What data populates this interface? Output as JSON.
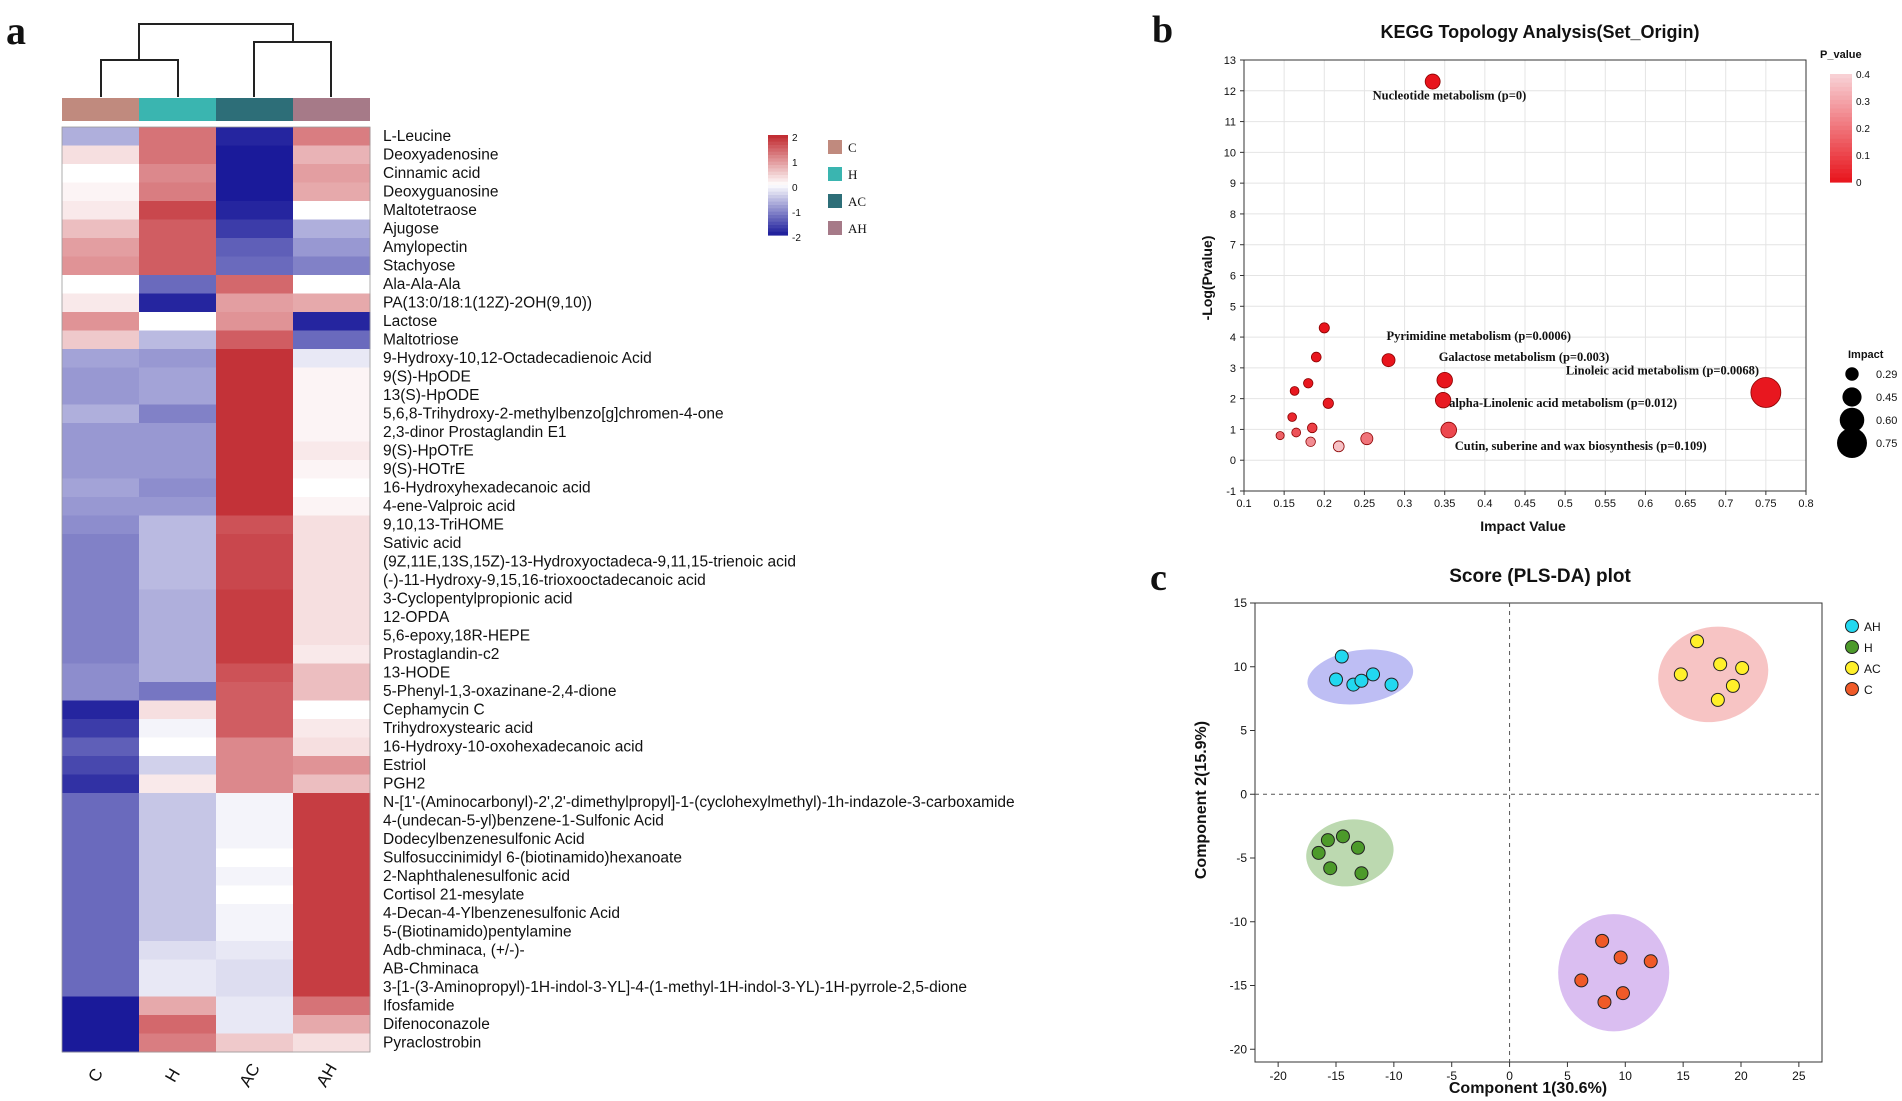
{
  "panels": {
    "a": "a",
    "b": "b",
    "c": "c"
  },
  "colors": {
    "group_C": "#C08A7E",
    "group_H": "#3AB5B0",
    "group_AC": "#2D6E78",
    "group_AH": "#A67A88",
    "heat_low": "#1A1A9A",
    "heat_mid": "#FFFFFF",
    "heat_high": "#C0272D",
    "axis": "#333333",
    "bubble_edge": "#8B0000",
    "pls_AH": "#22D8F0",
    "pls_H": "#4C9A2A",
    "pls_AC": "#FFF02A",
    "pls_C": "#F05A28",
    "ell_AH": "#A8A8F0",
    "ell_H": "#A6CC96",
    "ell_AC": "#F4B0B0",
    "ell_C": "#CDA8EC"
  },
  "chart_data": [
    {
      "type": "heatmap",
      "panel": "a",
      "columns": [
        "C",
        "H",
        "AC",
        "AH"
      ],
      "scale_ticks": [
        "2",
        "1",
        "0",
        "-1",
        "-2"
      ],
      "scale_range": [
        -2,
        2
      ],
      "group_legend": [
        "C",
        "H",
        "AC",
        "AH"
      ],
      "rows": [
        {
          "name": "L-Leucine",
          "values": [
            -0.7,
            1.3,
            -1.9,
            1.2
          ]
        },
        {
          "name": "Deoxyadenosine",
          "values": [
            0.3,
            1.3,
            -2.0,
            0.7
          ]
        },
        {
          "name": "Cinnamic acid",
          "values": [
            0.0,
            1.1,
            -2.0,
            0.9
          ]
        },
        {
          "name": "Deoxyguanosine",
          "values": [
            0.1,
            1.2,
            -2.0,
            0.8
          ]
        },
        {
          "name": "Maltotetraose",
          "values": [
            0.2,
            1.7,
            -1.9,
            0.0
          ]
        },
        {
          "name": "Ajugose",
          "values": [
            0.6,
            1.5,
            -1.7,
            -0.7
          ]
        },
        {
          "name": "Amylopectin",
          "values": [
            0.9,
            1.5,
            -1.4,
            -0.9
          ]
        },
        {
          "name": "Stachyose",
          "values": [
            1.0,
            1.5,
            -1.3,
            -1.1
          ]
        },
        {
          "name": "Ala-Ala-Ala",
          "values": [
            0.0,
            -1.3,
            1.4,
            0.0
          ]
        },
        {
          "name": "PA(13:0/18:1(12Z)-2OH(9,10))",
          "values": [
            0.2,
            -1.9,
            0.9,
            0.8
          ]
        },
        {
          "name": "Lactose",
          "values": [
            1.0,
            0.0,
            1.0,
            -1.9
          ]
        },
        {
          "name": "Maltotriose",
          "values": [
            0.5,
            -0.6,
            1.5,
            -1.3
          ]
        },
        {
          "name": "9-Hydroxy-10,12-Octadecadienoic Acid",
          "values": [
            -0.8,
            -0.9,
            1.9,
            -0.2
          ]
        },
        {
          "name": "9(S)-HpODE",
          "values": [
            -0.9,
            -0.8,
            1.9,
            0.1
          ]
        },
        {
          "name": "13(S)-HpODE",
          "values": [
            -0.9,
            -0.8,
            1.9,
            0.1
          ]
        },
        {
          "name": "5,6,8-Trihydroxy-2-methylbenzo[g]chromen-4-one",
          "values": [
            -0.7,
            -1.1,
            1.9,
            0.1
          ]
        },
        {
          "name": "2,3-dinor Prostaglandin E1",
          "values": [
            -0.9,
            -0.9,
            1.9,
            0.1
          ]
        },
        {
          "name": "9(S)-HpOTrE",
          "values": [
            -0.9,
            -0.9,
            1.9,
            0.2
          ]
        },
        {
          "name": "9(S)-HOTrE",
          "values": [
            -0.9,
            -0.9,
            1.9,
            0.1
          ]
        },
        {
          "name": "16-Hydroxyhexadecanoic acid",
          "values": [
            -0.8,
            -1.0,
            1.9,
            0.0
          ]
        },
        {
          "name": "4-ene-Valproic acid",
          "values": [
            -0.9,
            -0.9,
            1.9,
            0.1
          ]
        },
        {
          "name": "9,10,13-TriHOME",
          "values": [
            -1.0,
            -0.6,
            1.6,
            0.3
          ]
        },
        {
          "name": "Sativic acid",
          "values": [
            -1.1,
            -0.6,
            1.7,
            0.3
          ]
        },
        {
          "name": "(9Z,11E,13S,15Z)-13-Hydroxyoctadeca-9,11,15-trienoic acid",
          "values": [
            -1.1,
            -0.6,
            1.7,
            0.3
          ]
        },
        {
          "name": "(-)-11-Hydroxy-9,15,16-trioxooctadecanoic acid",
          "values": [
            -1.1,
            -0.6,
            1.7,
            0.3
          ]
        },
        {
          "name": "3-Cyclopentylpropionic acid",
          "values": [
            -1.1,
            -0.7,
            1.8,
            0.3
          ]
        },
        {
          "name": "12-OPDA",
          "values": [
            -1.1,
            -0.7,
            1.8,
            0.3
          ]
        },
        {
          "name": "5,6-epoxy,18R-HEPE",
          "values": [
            -1.1,
            -0.7,
            1.8,
            0.3
          ]
        },
        {
          "name": "Prostaglandin-c2",
          "values": [
            -1.1,
            -0.7,
            1.8,
            0.2
          ]
        },
        {
          "name": "13-HODE",
          "values": [
            -1.0,
            -0.7,
            1.6,
            0.6
          ]
        },
        {
          "name": "5-Phenyl-1,3-oxazinane-2,4-dione",
          "values": [
            -1.0,
            -1.2,
            1.5,
            0.6
          ]
        },
        {
          "name": "Cephamycin C",
          "values": [
            -1.9,
            0.3,
            1.5,
            0.0
          ]
        },
        {
          "name": "Trihydroxystearic acid",
          "values": [
            -1.7,
            -0.1,
            1.5,
            0.2
          ]
        },
        {
          "name": "16-Hydroxy-10-oxohexadecanoic acid",
          "values": [
            -1.4,
            0.0,
            1.1,
            0.3
          ]
        },
        {
          "name": "Estriol",
          "values": [
            -1.6,
            -0.4,
            1.1,
            1.0
          ]
        },
        {
          "name": "PGH2",
          "values": [
            -1.8,
            0.2,
            1.1,
            0.6
          ]
        },
        {
          "name": "N-[1'-(Aminocarbonyl)-2',2'-dimethylpropyl]-1-(cyclohexylmethyl)-1h-indazole-3-carboxamide",
          "values": [
            -1.3,
            -0.5,
            -0.1,
            1.8
          ]
        },
        {
          "name": "4-(undecan-5-yl)benzene-1-Sulfonic Acid",
          "values": [
            -1.3,
            -0.5,
            -0.1,
            1.8
          ]
        },
        {
          "name": "Dodecylbenzenesulfonic Acid",
          "values": [
            -1.3,
            -0.5,
            -0.1,
            1.8
          ]
        },
        {
          "name": "Sulfosuccinimidyl 6-(biotinamido)hexanoate",
          "values": [
            -1.3,
            -0.5,
            0.0,
            1.8
          ]
        },
        {
          "name": "2-Naphthalenesulfonic acid",
          "values": [
            -1.3,
            -0.5,
            -0.1,
            1.8
          ]
        },
        {
          "name": "Cortisol 21-mesylate",
          "values": [
            -1.3,
            -0.5,
            0.0,
            1.8
          ]
        },
        {
          "name": "4-Decan-4-Ylbenzenesulfonic Acid",
          "values": [
            -1.3,
            -0.5,
            -0.1,
            1.8
          ]
        },
        {
          "name": "5-(Biotinamido)pentylamine",
          "values": [
            -1.3,
            -0.5,
            -0.1,
            1.8
          ]
        },
        {
          "name": "Adb-chminaca, (+/-)-",
          "values": [
            -1.3,
            -0.3,
            -0.2,
            1.8
          ]
        },
        {
          "name": "AB-Chminaca",
          "values": [
            -1.3,
            -0.2,
            -0.3,
            1.8
          ]
        },
        {
          "name": "3-[1-(3-Aminopropyl)-1H-indol-3-YL]-4-(1-methyl-1H-indol-3-YL)-1H-pyrrole-2,5-dione",
          "values": [
            -1.3,
            -0.2,
            -0.3,
            1.8
          ]
        },
        {
          "name": "Ifosfamide",
          "values": [
            -2.0,
            0.8,
            -0.2,
            1.3
          ]
        },
        {
          "name": "Difenoconazole",
          "values": [
            -2.0,
            1.4,
            -0.2,
            0.8
          ]
        },
        {
          "name": "Pyraclostrobin",
          "values": [
            -2.0,
            1.2,
            0.5,
            0.3
          ]
        }
      ]
    },
    {
      "type": "scatter",
      "panel": "b",
      "title": "KEGG Topology Analysis(Set_Origin)",
      "xlabel": "Impact Value",
      "ylabel": "-Log(Pvalue)",
      "xlim": [
        0.1,
        0.8
      ],
      "ylim": [
        -1,
        13
      ],
      "xticks": [
        "0.1",
        "0.15",
        "0.2",
        "0.25",
        "0.3",
        "0.35",
        "0.4",
        "0.45",
        "0.5",
        "0.55",
        "0.6",
        "0.65",
        "0.7",
        "0.75",
        "0.8"
      ],
      "yticks": [
        "-1",
        "0",
        "1",
        "2",
        "3",
        "4",
        "5",
        "6",
        "7",
        "8",
        "9",
        "10",
        "11",
        "12",
        "13"
      ],
      "color_legend": {
        "title": "P_value",
        "ticks": [
          "0.4",
          "0.3",
          "0.2",
          "0.1",
          "0"
        ]
      },
      "size_legend": {
        "title": "Impact",
        "labels": [
          "0.29",
          "0.45",
          "0.60",
          "0.75"
        ]
      },
      "points": [
        {
          "x": 0.335,
          "y": 12.3,
          "p": 0.0,
          "label": "Nucleotide metabolism (p=0)"
        },
        {
          "x": 0.28,
          "y": 3.25,
          "p": 0.0006,
          "label": "Pyrimidine metabolism (p=0.0006)"
        },
        {
          "x": 0.35,
          "y": 2.6,
          "p": 0.003,
          "label": "Galactose metabolism (p=0.003)"
        },
        {
          "x": 0.75,
          "y": 2.2,
          "p": 0.0068,
          "label": "Linoleic acid metabolism (p=0.0068)"
        },
        {
          "x": 0.348,
          "y": 1.95,
          "p": 0.012,
          "label": "alpha-Linolenic acid metabolism (p=0.012)"
        },
        {
          "x": 0.355,
          "y": 0.98,
          "p": 0.109,
          "label": "Cutin, suberine and wax biosynthesis (p=0.109)"
        },
        {
          "x": 0.2,
          "y": 4.3,
          "p": 0.001,
          "label": ""
        },
        {
          "x": 0.19,
          "y": 3.35,
          "p": 0.002,
          "label": ""
        },
        {
          "x": 0.18,
          "y": 2.5,
          "p": 0.004,
          "label": ""
        },
        {
          "x": 0.163,
          "y": 2.25,
          "p": 0.006,
          "label": ""
        },
        {
          "x": 0.205,
          "y": 1.85,
          "p": 0.014,
          "label": ""
        },
        {
          "x": 0.16,
          "y": 1.4,
          "p": 0.04,
          "label": ""
        },
        {
          "x": 0.185,
          "y": 1.05,
          "p": 0.09,
          "label": ""
        },
        {
          "x": 0.165,
          "y": 0.9,
          "p": 0.13,
          "label": ""
        },
        {
          "x": 0.145,
          "y": 0.8,
          "p": 0.16,
          "label": ""
        },
        {
          "x": 0.183,
          "y": 0.6,
          "p": 0.25,
          "label": ""
        },
        {
          "x": 0.253,
          "y": 0.7,
          "p": 0.2,
          "label": ""
        },
        {
          "x": 0.218,
          "y": 0.45,
          "p": 0.36,
          "label": ""
        }
      ]
    },
    {
      "type": "scatter",
      "panel": "c",
      "title": "Score (PLS-DA) plot",
      "xlabel": "Component 1(30.6%)",
      "ylabel": "Component 2(15.9%)",
      "xlim": [
        -22,
        27
      ],
      "ylim": [
        -21,
        15
      ],
      "xticks": [
        "-20",
        "-15",
        "-10",
        "-5",
        "0",
        "5",
        "10",
        "15",
        "20",
        "25"
      ],
      "yticks": [
        "15",
        "10",
        "5",
        "0",
        "-5",
        "-10",
        "-15",
        "-20"
      ],
      "legend": [
        "AH",
        "H",
        "AC",
        "C"
      ],
      "series": [
        {
          "name": "AH",
          "ellipse": {
            "cx": -12.9,
            "cy": 9.2,
            "rx": 4.6,
            "ry": 2.1,
            "angle": -8
          },
          "points": [
            [
              -14.5,
              10.8
            ],
            [
              -15.0,
              9.0
            ],
            [
              -13.5,
              8.6
            ],
            [
              -12.8,
              8.9
            ],
            [
              -11.8,
              9.4
            ],
            [
              -10.2,
              8.6
            ]
          ]
        },
        {
          "name": "H",
          "ellipse": {
            "cx": -13.8,
            "cy": -4.6,
            "rx": 3.8,
            "ry": 2.6,
            "angle": -10
          },
          "points": [
            [
              -16.5,
              -4.6
            ],
            [
              -15.7,
              -3.6
            ],
            [
              -14.4,
              -3.3
            ],
            [
              -13.1,
              -4.2
            ],
            [
              -15.5,
              -5.8
            ],
            [
              -12.8,
              -6.2
            ]
          ]
        },
        {
          "name": "AC",
          "ellipse": {
            "cx": 17.6,
            "cy": 9.4,
            "rx": 4.8,
            "ry": 3.7,
            "angle": -15
          },
          "points": [
            [
              16.2,
              12.0
            ],
            [
              14.8,
              9.4
            ],
            [
              18.2,
              10.2
            ],
            [
              20.1,
              9.9
            ],
            [
              19.3,
              8.5
            ],
            [
              18.0,
              7.4
            ]
          ]
        },
        {
          "name": "C",
          "ellipse": {
            "cx": 9.0,
            "cy": -14.0,
            "rx": 4.8,
            "ry": 4.6,
            "angle": 0
          },
          "points": [
            [
              6.2,
              -14.6
            ],
            [
              8.0,
              -11.5
            ],
            [
              9.6,
              -12.8
            ],
            [
              12.2,
              -13.1
            ],
            [
              9.8,
              -15.6
            ],
            [
              8.2,
              -16.3
            ]
          ]
        }
      ]
    }
  ]
}
